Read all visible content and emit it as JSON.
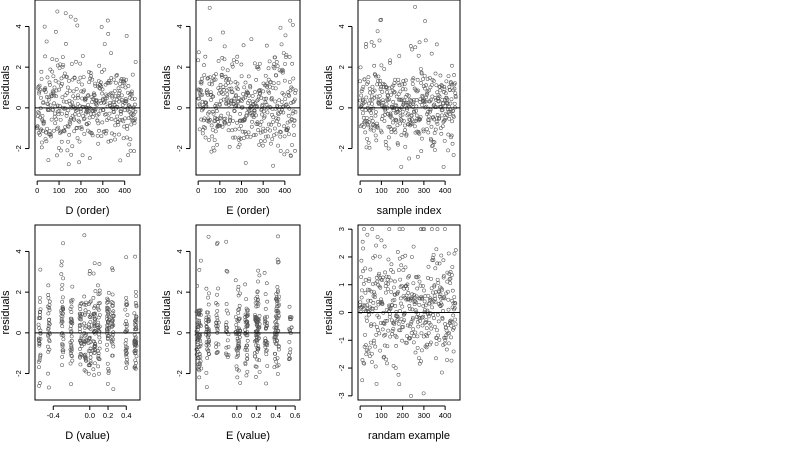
{
  "chart_data": [
    {
      "type": "scatter",
      "xlabel": "D (order)",
      "ylabel": "residuals",
      "xticks": [
        0,
        100,
        200,
        300,
        400
      ],
      "yticks": [
        -2,
        0,
        2,
        4
      ],
      "xlim": [
        -10,
        470
      ],
      "ylim": [
        -3.3,
        5.3
      ],
      "hline": 0,
      "gen": {
        "seed": 11,
        "n": 450,
        "xmode": "index",
        "xmin": 0,
        "xmax": 450,
        "clusters": [
          -0.55,
          -0.25,
          0.0,
          0.12,
          0.2,
          0.4
        ],
        "spread": 0.6,
        "ymin": -2.9,
        "ymax": 5.1
      }
    },
    {
      "type": "scatter",
      "xlabel": "E (order)",
      "ylabel": "residuals",
      "xticks": [
        0,
        100,
        200,
        300,
        400
      ],
      "yticks": [
        -2,
        0,
        2,
        4
      ],
      "xlim": [
        -10,
        470
      ],
      "ylim": [
        -3.3,
        5.3
      ],
      "hline": 0,
      "gen": {
        "seed": 23,
        "n": 450,
        "xmode": "index",
        "xmin": 0,
        "xmax": 450,
        "clusters": [
          -0.4,
          -0.2,
          0.0,
          0.2,
          0.4
        ],
        "spread": 0.6,
        "ymin": -2.9,
        "ymax": 5.1
      }
    },
    {
      "type": "scatter",
      "xlabel": "sample index",
      "ylabel": "residuals",
      "xticks": [
        0,
        100,
        200,
        300,
        400
      ],
      "yticks": [
        -2,
        0,
        2,
        4
      ],
      "xlim": [
        -10,
        470
      ],
      "ylim": [
        -3.3,
        5.3
      ],
      "hline": 0,
      "gen": {
        "seed": 37,
        "n": 450,
        "xmode": "index",
        "xmin": 0,
        "xmax": 450,
        "clusters": [
          0.0
        ],
        "spread": 1.0,
        "ymin": -2.9,
        "ymax": 5.1
      }
    },
    {
      "type": "scatter",
      "xlabel": "D (value)",
      "ylabel": "residuals",
      "xticks": [
        -0.4,
        0.0,
        0.2,
        0.4
      ],
      "xticklabels": [
        "-0.4",
        "0.0",
        "0.2",
        "0.4"
      ],
      "yticks": [
        -2,
        0,
        2,
        4
      ],
      "xlim": [
        -0.6,
        0.55
      ],
      "ylim": [
        -3.3,
        5.3
      ],
      "hline": 0,
      "gen": {
        "seed": 51,
        "n": 450,
        "xmode": "clusters",
        "clusters": [
          -0.55,
          -0.45,
          -0.3,
          -0.2,
          -0.1,
          -0.05,
          0.0,
          0.05,
          0.1,
          0.2,
          0.25,
          0.4,
          0.5
        ],
        "spread": 0.012,
        "ymin": -2.9,
        "ymax": 5.1
      }
    },
    {
      "type": "scatter",
      "xlabel": "E (value)",
      "ylabel": "residuals",
      "xticks": [
        -0.4,
        0.0,
        0.2,
        0.4,
        0.6
      ],
      "xticklabels": [
        "-0.4",
        "0.0",
        "0.2",
        "0.4",
        "0.6"
      ],
      "yticks": [
        -2,
        0,
        2,
        4
      ],
      "xlim": [
        -0.42,
        0.65
      ],
      "ylim": [
        -3.3,
        5.3
      ],
      "hline": 0,
      "gen": {
        "seed": 67,
        "n": 450,
        "xmode": "clusters",
        "clusters": [
          -0.4,
          -0.38,
          -0.3,
          -0.2,
          -0.1,
          0.0,
          0.02,
          0.1,
          0.2,
          0.22,
          0.3,
          0.4,
          0.42,
          0.55
        ],
        "spread": 0.015,
        "ymin": -2.9,
        "ymax": 5.1
      }
    },
    {
      "type": "scatter",
      "xlabel": "randam example",
      "ylabel": "residuals",
      "xticks": [
        0,
        100,
        200,
        300,
        400
      ],
      "yticks": [
        -3,
        -2,
        -1,
        0,
        1,
        2,
        3
      ],
      "xlim": [
        -10,
        470
      ],
      "ylim": [
        -3.15,
        3.15
      ],
      "hline": 0,
      "gen": {
        "seed": 89,
        "n": 450,
        "xmode": "index",
        "xmin": 0,
        "xmax": 450,
        "clusters": [
          0.0
        ],
        "spread": 1.0,
        "ymin": -3.0,
        "ymax": 3.0
      }
    }
  ]
}
